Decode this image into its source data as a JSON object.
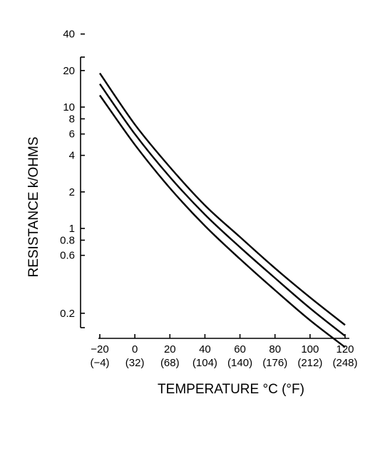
{
  "chart_data": {
    "type": "line",
    "xlabel": "TEMPERATURE °C (°F)",
    "ylabel": "RESISTANCE k/OHMS",
    "y_scale": "log",
    "xlim": [
      -25,
      122
    ],
    "ylim": [
      0.1,
      40
    ],
    "x_ticks": [
      {
        "value": -20,
        "label": "−20",
        "sublabel": "(−4)"
      },
      {
        "value": 0,
        "label": "0",
        "sublabel": "(32)"
      },
      {
        "value": 20,
        "label": "20",
        "sublabel": "(68)"
      },
      {
        "value": 40,
        "label": "40",
        "sublabel": "(104)"
      },
      {
        "value": 60,
        "label": "60",
        "sublabel": "(140)"
      },
      {
        "value": 80,
        "label": "80",
        "sublabel": "(176)"
      },
      {
        "value": 100,
        "label": "100",
        "sublabel": "(212)"
      },
      {
        "value": 120,
        "label": "120",
        "sublabel": "(248)"
      }
    ],
    "y_ticks": [
      {
        "value": 40,
        "label": "40"
      },
      {
        "value": 20,
        "label": "20"
      },
      {
        "value": 10,
        "label": "10"
      },
      {
        "value": 8,
        "label": "8"
      },
      {
        "value": 6,
        "label": "6"
      },
      {
        "value": 4,
        "label": "4"
      },
      {
        "value": 2,
        "label": "2"
      },
      {
        "value": 1,
        "label": "1"
      },
      {
        "value": 0.8,
        "label": "0.8"
      },
      {
        "value": 0.6,
        "label": "0.6"
      },
      {
        "value": 0.2,
        "label": "0.2"
      }
    ],
    "series": [
      {
        "x": [
          -20,
          0,
          20,
          40,
          60,
          80,
          100,
          120
        ],
        "values": [
          19.0,
          7.2,
          3.2,
          1.55,
          0.85,
          0.47,
          0.27,
          0.16
        ]
      },
      {
        "x": [
          -20,
          0,
          20,
          40,
          60,
          80,
          100,
          120
        ],
        "values": [
          15.5,
          6.0,
          2.65,
          1.3,
          0.7,
          0.39,
          0.22,
          0.13
        ]
      },
      {
        "x": [
          -20,
          0,
          20,
          40,
          60,
          80,
          100,
          120
        ],
        "values": [
          12.5,
          4.9,
          2.15,
          1.05,
          0.56,
          0.31,
          0.175,
          0.105
        ]
      }
    ],
    "grid": false,
    "legend": "none"
  }
}
